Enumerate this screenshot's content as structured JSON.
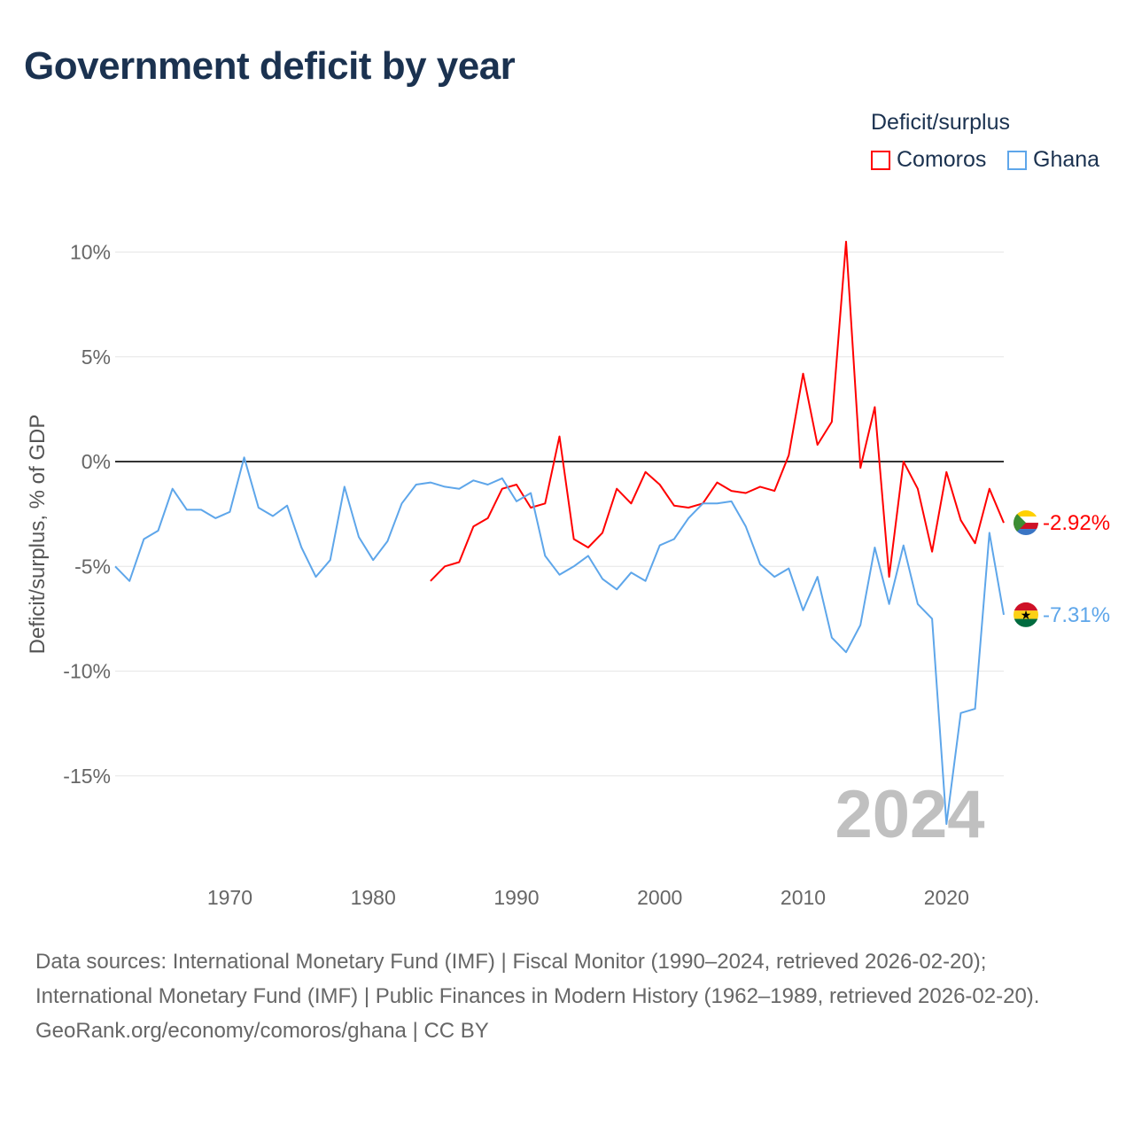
{
  "title": "Government deficit by year",
  "legend": {
    "title": "Deficit/surplus",
    "items": [
      {
        "name": "Comoros",
        "color": "#ff0000"
      },
      {
        "name": "Ghana",
        "color": "#5ea6ea"
      }
    ]
  },
  "watermark_year": "2024",
  "footer": {
    "sources": "Data sources: International Monetary Fund (IMF) | Fiscal Monitor (1990–2024, retrieved 2026-02-20); International Monetary Fund (IMF) | Public Finances in Modern History (1962–1989, retrieved 2026-02-20).",
    "credit": "GeoRank.org/economy/comoros/ghana | CC BY"
  },
  "chart_data": {
    "type": "line",
    "title": "Government deficit by year",
    "xlabel": "",
    "ylabel": "Deficit/surplus, % of GDP",
    "xlim": [
      1962,
      2024
    ],
    "ylim": [
      -18.5,
      11
    ],
    "x_ticks": [
      1970,
      1980,
      1990,
      2000,
      2010,
      2020
    ],
    "y_ticks": [
      10,
      5,
      0,
      -5,
      -10,
      -15
    ],
    "y_tick_labels": [
      "10%",
      "5%",
      "0%",
      "-5%",
      "-10%",
      "-15%"
    ],
    "grid": true,
    "legend_position": "top-right",
    "series": [
      {
        "name": "Comoros",
        "color": "#ff0000",
        "start_year": 1984,
        "end_label": "-2.92%",
        "values": [
          -5.7,
          -5.0,
          -4.8,
          -3.1,
          -2.7,
          -1.3,
          -1.1,
          -2.2,
          -2.0,
          1.2,
          -3.7,
          -4.1,
          -3.4,
          -1.3,
          -2.0,
          -0.5,
          -1.1,
          -2.1,
          -2.2,
          -2.0,
          -1.0,
          -1.4,
          -1.5,
          -1.2,
          -1.4,
          0.3,
          4.2,
          0.8,
          1.9,
          10.5,
          -0.3,
          2.6,
          -5.5,
          0.0,
          -1.3,
          -4.3,
          -0.5,
          -2.8,
          -3.9,
          -1.3,
          -2.92
        ]
      },
      {
        "name": "Ghana",
        "color": "#5ea6ea",
        "start_year": 1962,
        "end_label": "-7.31%",
        "values": [
          -5.0,
          -5.7,
          -3.7,
          -3.3,
          -1.3,
          -2.3,
          -2.3,
          -2.7,
          -2.4,
          0.2,
          -2.2,
          -2.6,
          -2.1,
          -4.1,
          -5.5,
          -4.7,
          -1.2,
          -3.6,
          -4.7,
          -3.8,
          -2.0,
          -1.1,
          -1.0,
          -1.2,
          -1.3,
          -0.9,
          -1.1,
          -0.8,
          -1.9,
          -1.5,
          -4.5,
          -5.4,
          -5.0,
          -4.5,
          -5.6,
          -6.1,
          -5.3,
          -5.7,
          -4.0,
          -3.7,
          -2.7,
          -2.0,
          -2.0,
          -1.9,
          -3.1,
          -4.9,
          -5.5,
          -5.1,
          -7.1,
          -5.5,
          -8.4,
          -9.1,
          -7.8,
          -4.1,
          -6.8,
          -4.0,
          -6.8,
          -7.5,
          -17.3,
          -12.0,
          -11.8,
          -3.4,
          -7.31
        ]
      }
    ]
  }
}
